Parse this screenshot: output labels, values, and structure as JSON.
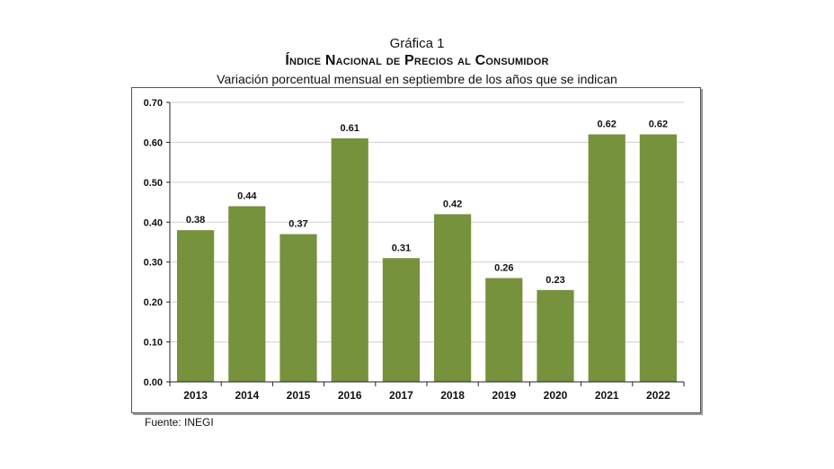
{
  "header": {
    "figure_label": "Gráfica 1",
    "title": "Índice Nacional de Precios al Consumidor",
    "subtitle": "Variación porcentual mensual en septiembre de los años que se indican"
  },
  "footer": {
    "source": "Fuente: INEGI"
  },
  "chart_data": {
    "type": "bar",
    "title": "Índice Nacional de Precios al Consumidor",
    "subtitle": "Variación porcentual mensual en septiembre de los años que se indican",
    "xlabel": "",
    "ylabel": "",
    "categories": [
      "2013",
      "2014",
      "2015",
      "2016",
      "2017",
      "2018",
      "2019",
      "2020",
      "2021",
      "2022"
    ],
    "values": [
      0.38,
      0.44,
      0.37,
      0.61,
      0.31,
      0.42,
      0.26,
      0.23,
      0.62,
      0.62
    ],
    "value_labels": [
      "0.38",
      "0.44",
      "0.37",
      "0.61",
      "0.31",
      "0.42",
      "0.26",
      "0.23",
      "0.62",
      "0.62"
    ],
    "ylim": [
      0,
      0.7
    ],
    "yticks": [
      "0.00",
      "0.10",
      "0.20",
      "0.30",
      "0.40",
      "0.50",
      "0.60",
      "0.70"
    ],
    "grid": true,
    "legend": "none",
    "colors": {
      "bar": "#76923c",
      "grid": "#d0d0d0",
      "axis": "#222222"
    }
  }
}
